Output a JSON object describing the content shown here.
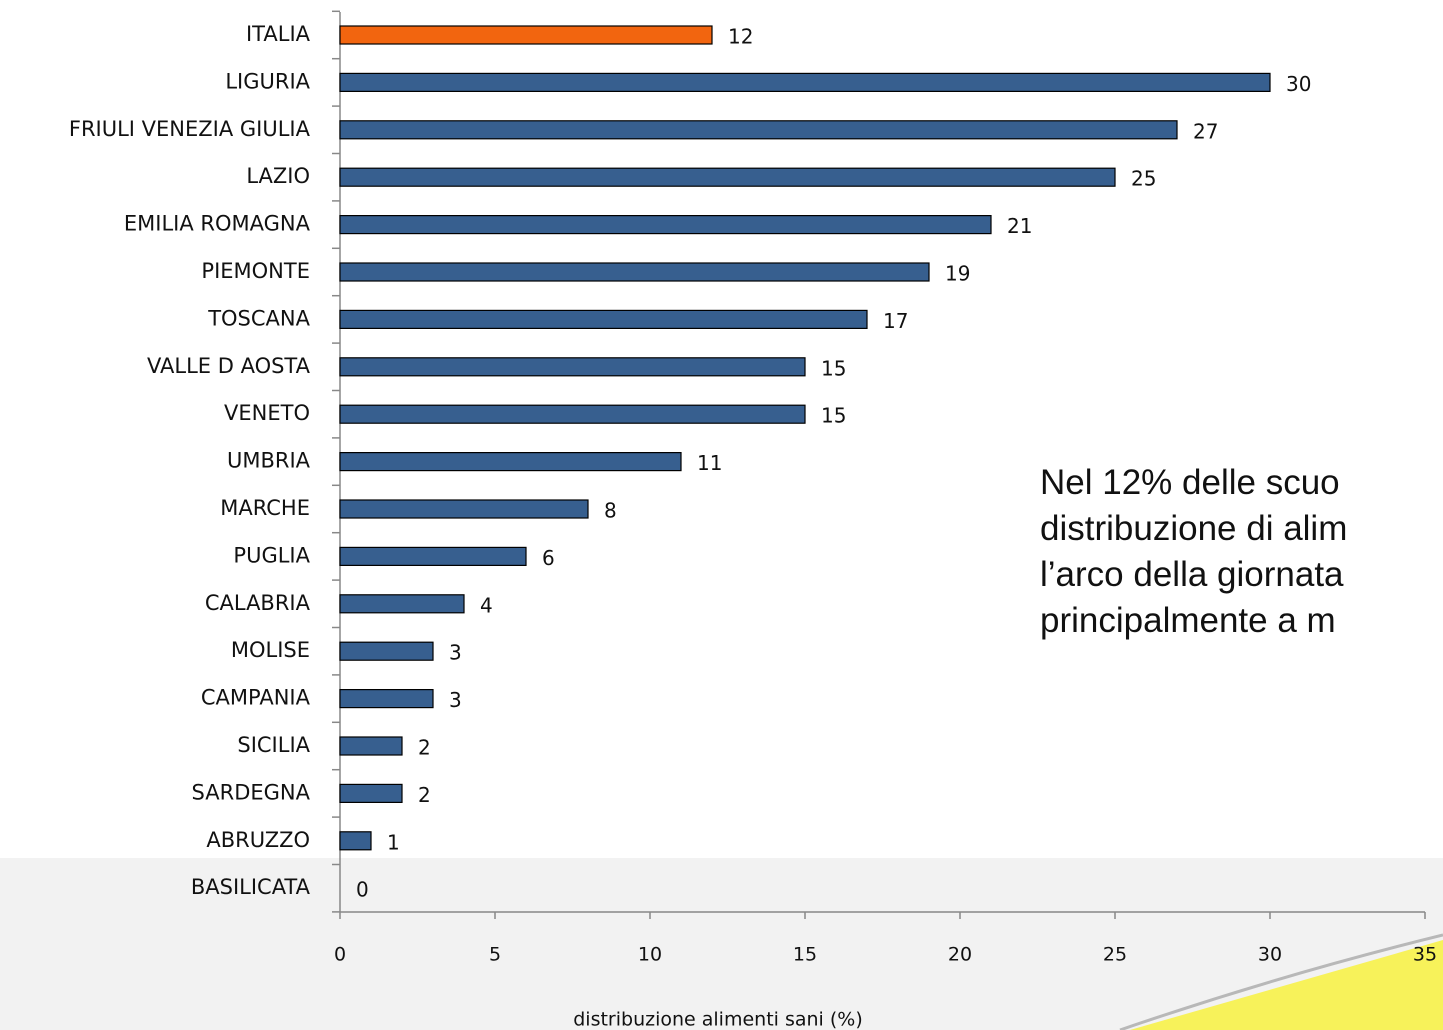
{
  "chart_data": {
    "type": "barh",
    "categories": [
      "ITALIA",
      "LIGURIA",
      "FRIULI VENEZIA GIULIA",
      "LAZIO",
      "EMILIA ROMAGNA",
      "PIEMONTE",
      "TOSCANA",
      "VALLE D AOSTA",
      "VENETO",
      "UMBRIA",
      "MARCHE",
      "PUGLIA",
      "CALABRIA",
      "MOLISE",
      "CAMPANIA",
      "SICILIA",
      "SARDEGNA",
      "ABRUZZO",
      "BASILICATA"
    ],
    "values": [
      12,
      30,
      27,
      25,
      21,
      19,
      17,
      15,
      15,
      11,
      8,
      6,
      4,
      3,
      3,
      2,
      2,
      1,
      0
    ],
    "colors": [
      "#f2650f",
      "#375f8f",
      "#375f8f",
      "#375f8f",
      "#375f8f",
      "#375f8f",
      "#375f8f",
      "#375f8f",
      "#375f8f",
      "#375f8f",
      "#375f8f",
      "#375f8f",
      "#375f8f",
      "#375f8f",
      "#375f8f",
      "#375f8f",
      "#375f8f",
      "#375f8f",
      "#375f8f"
    ],
    "xlim": [
      0,
      35
    ],
    "xticks": [
      0,
      5,
      10,
      15,
      20,
      25,
      30,
      35
    ],
    "xlabel": "distribuzione alimenti sani (%)",
    "annotation": [
      "Nel 12% delle scuo",
      "distribuzione di alim",
      "l’arco della giornata",
      "principalmente a m"
    ]
  }
}
